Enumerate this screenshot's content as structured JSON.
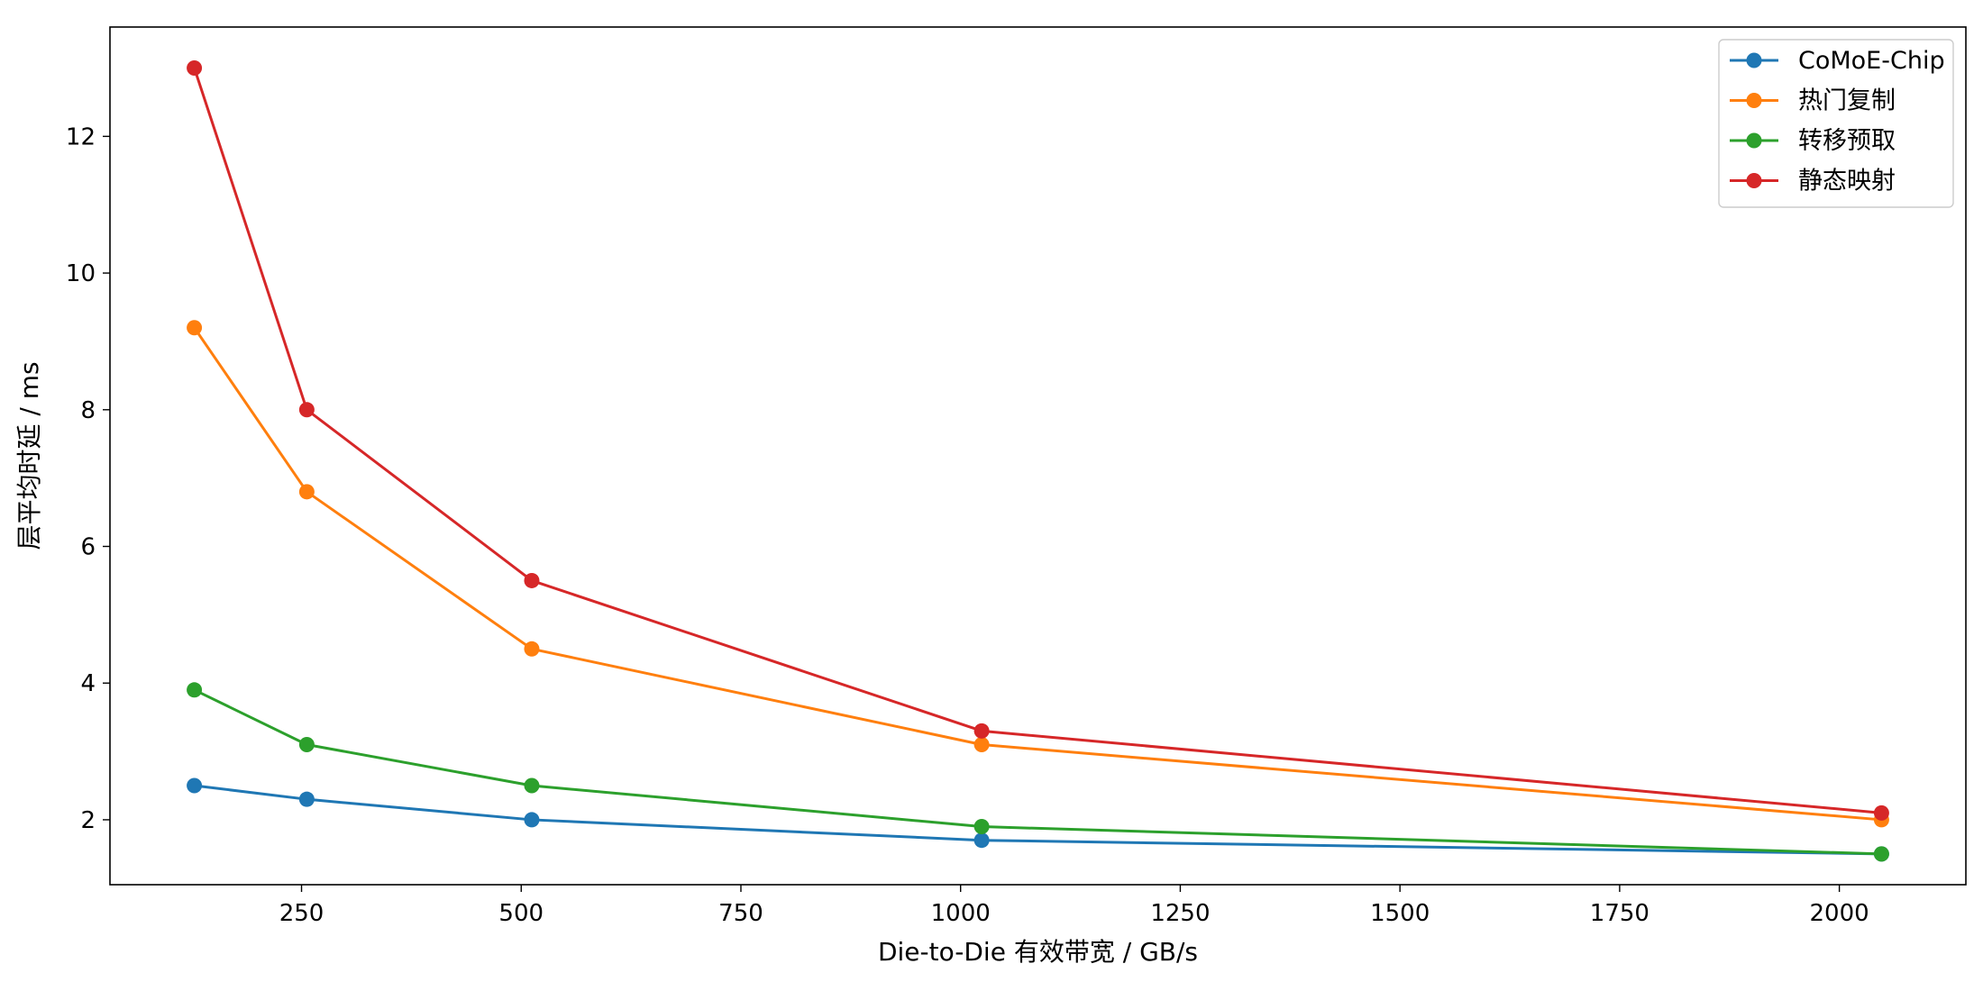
{
  "chart_data": {
    "type": "line",
    "title": "",
    "xlabel": "Die-to-Die 有效带宽 / GB/s",
    "ylabel": "层平均时延 / ms",
    "xlim": [
      32,
      2144
    ],
    "ylim": [
      1.05,
      13.6
    ],
    "xticks": [
      250,
      500,
      750,
      1000,
      1250,
      1500,
      1750,
      2000
    ],
    "yticks": [
      2,
      4,
      6,
      8,
      10,
      12
    ],
    "grid": false,
    "legend_position": "top-right",
    "x": [
      128,
      256,
      512,
      1024,
      2048
    ],
    "series": [
      {
        "name": "CoMoE-Chip",
        "color": "#1f77b4",
        "values": [
          2.5,
          2.3,
          2.0,
          1.7,
          1.5
        ]
      },
      {
        "name": "热门复制",
        "color": "#ff7f0e",
        "values": [
          9.2,
          6.8,
          4.5,
          3.1,
          2.0
        ]
      },
      {
        "name": "转移预取",
        "color": "#2ca02c",
        "values": [
          3.9,
          3.1,
          2.5,
          1.9,
          1.5
        ]
      },
      {
        "name": "静态映射",
        "color": "#d62728",
        "values": [
          13.0,
          8.0,
          5.5,
          3.3,
          2.1
        ]
      }
    ]
  }
}
